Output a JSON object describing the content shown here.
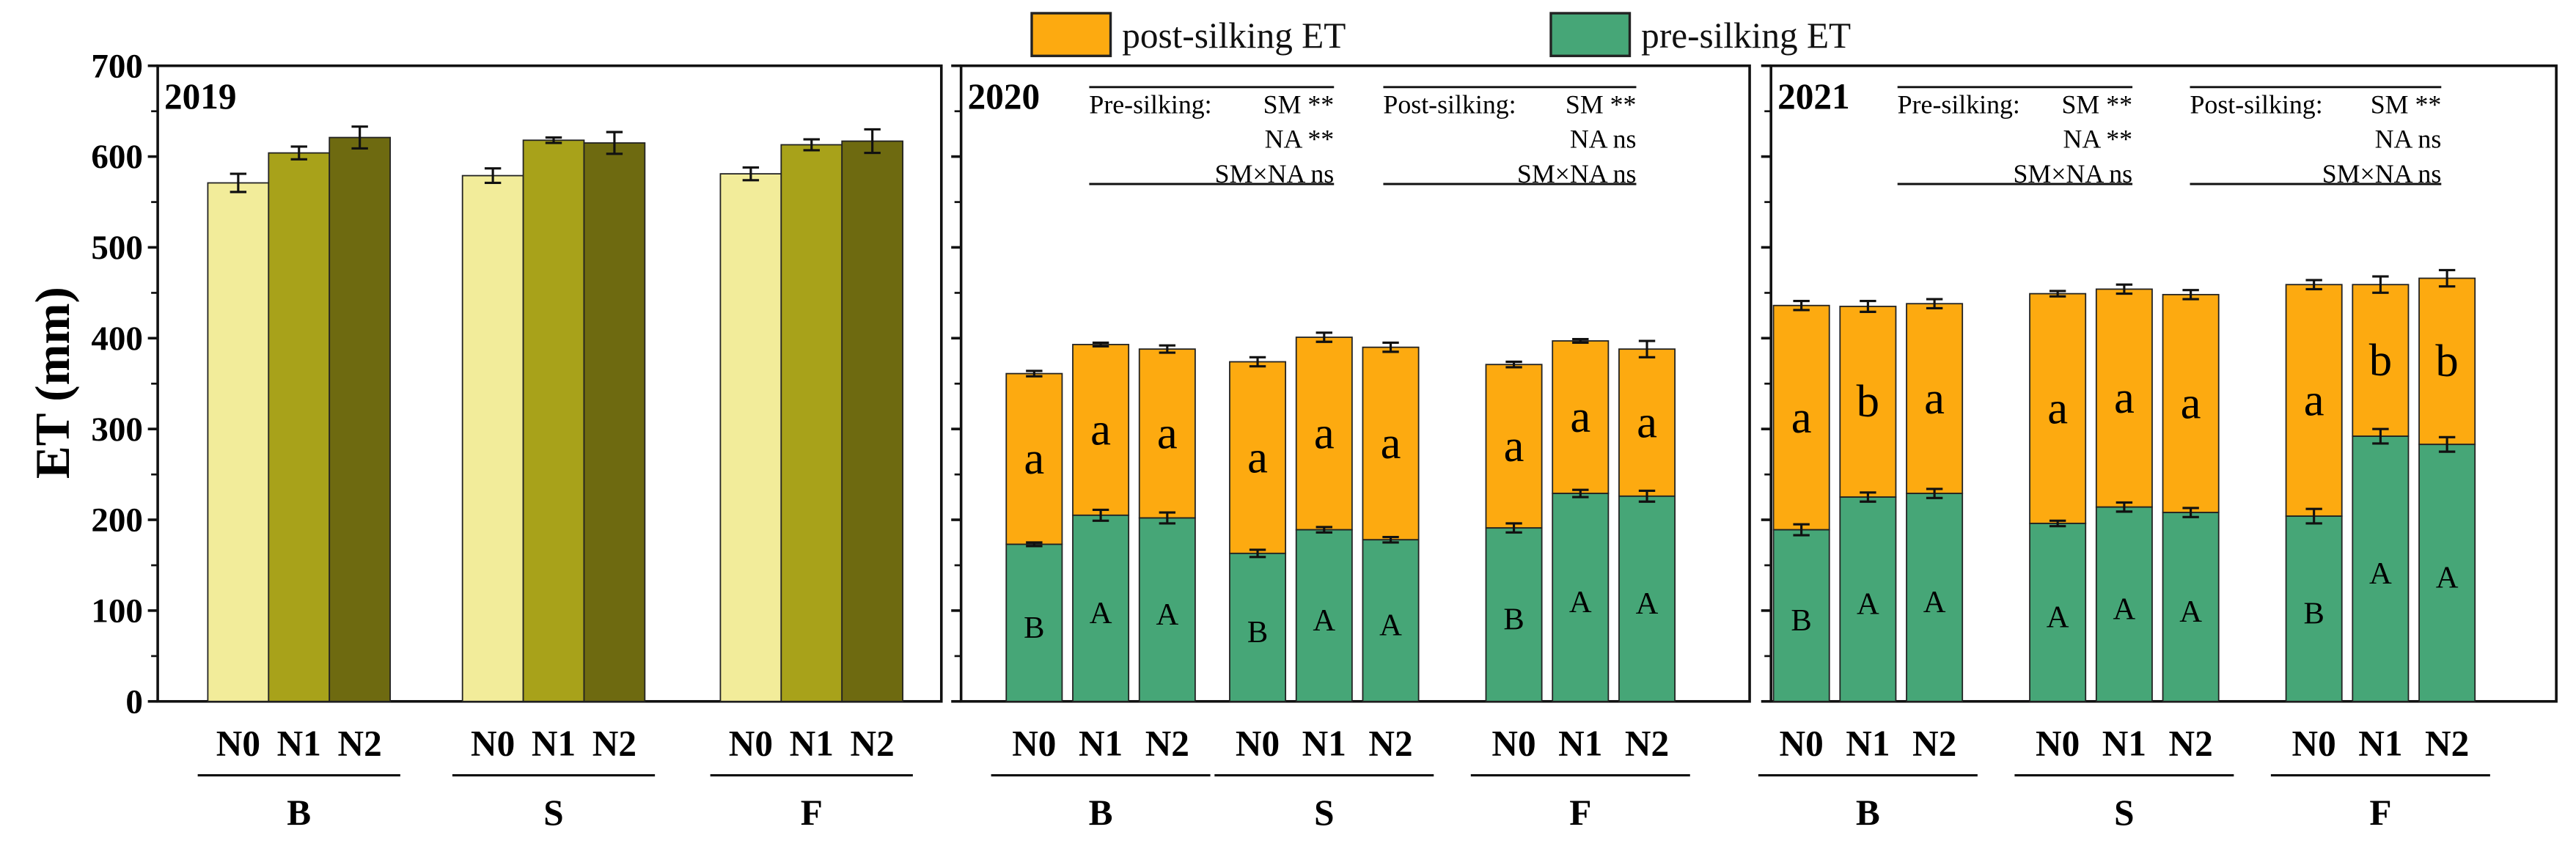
{
  "chart_data": {
    "type": "bar",
    "ylabel": "ET (mm)",
    "ylim": [
      0,
      700
    ],
    "yticks": [
      "0",
      "100",
      "200",
      "300",
      "400",
      "500",
      "600",
      "700"
    ],
    "legend": {
      "placement": "top-center",
      "entries": [
        {
          "label": "post-silking ET",
          "color": "#fdaa10"
        },
        {
          "label": "pre-silking ET",
          "color": "#46a677"
        }
      ]
    },
    "groups": [
      "B",
      "S",
      "F"
    ],
    "levels": [
      "N0",
      "N1",
      "N2"
    ],
    "colors_2019": [
      "#f2ec9a",
      "#a8a21a",
      "#6e6a10"
    ],
    "panels": [
      {
        "year": "2019",
        "type": "bar",
        "values": [
          [
            571,
            604,
            621
          ],
          [
            579,
            618,
            615
          ],
          [
            581,
            613,
            617
          ]
        ],
        "errors": [
          [
            10,
            7,
            12
          ],
          [
            8,
            3,
            12
          ],
          [
            7,
            6,
            13
          ]
        ]
      },
      {
        "year": "2020",
        "type": "stacked",
        "pre": [
          [
            173,
            205,
            202
          ],
          [
            163,
            189,
            178
          ],
          [
            191,
            229,
            226
          ]
        ],
        "pre_err": [
          [
            2,
            6,
            6
          ],
          [
            4,
            3,
            3
          ],
          [
            5,
            4,
            6
          ]
        ],
        "total": [
          [
            361,
            393,
            388
          ],
          [
            374,
            401,
            390
          ],
          [
            371,
            397,
            388
          ]
        ],
        "total_err": [
          [
            3,
            2,
            4
          ],
          [
            5,
            5,
            5
          ],
          [
            3,
            2,
            9
          ]
        ],
        "pre_letters": [
          [
            "B",
            "A",
            "A"
          ],
          [
            "B",
            "A",
            "A"
          ],
          [
            "B",
            "A",
            "A"
          ]
        ],
        "post_letters": [
          [
            "a",
            "a",
            "a"
          ],
          [
            "a",
            "a",
            "a"
          ],
          [
            "a",
            "a",
            "a"
          ]
        ],
        "stats": {
          "pre": {
            "title": "Pre-silking:",
            "lines": [
              "SM **",
              "NA **",
              "SM×NA ns"
            ]
          },
          "post": {
            "title": "Post-silking:",
            "lines": [
              "SM **",
              "NA ns",
              "SM×NA ns"
            ]
          }
        }
      },
      {
        "year": "2021",
        "type": "stacked",
        "pre": [
          [
            189,
            225,
            229
          ],
          [
            196,
            214,
            208
          ],
          [
            204,
            292,
            283
          ]
        ],
        "pre_err": [
          [
            6,
            5,
            5
          ],
          [
            3,
            5,
            5
          ],
          [
            8,
            8,
            8
          ]
        ],
        "total": [
          [
            436,
            435,
            438
          ],
          [
            449,
            454,
            448
          ],
          [
            459,
            459,
            466
          ]
        ],
        "total_err": [
          [
            5,
            6,
            5
          ],
          [
            3,
            5,
            5
          ],
          [
            5,
            9,
            9
          ]
        ],
        "pre_letters": [
          [
            "B",
            "A",
            "A"
          ],
          [
            "A",
            "A",
            "A"
          ],
          [
            "B",
            "A",
            "A"
          ]
        ],
        "post_letters": [
          [
            "a",
            "b",
            "a"
          ],
          [
            "a",
            "a",
            "a"
          ],
          [
            "a",
            "b",
            "b"
          ]
        ],
        "stats": {
          "pre": {
            "title": "Pre-silking:",
            "lines": [
              "SM **",
              "NA **",
              "SM×NA ns"
            ]
          },
          "post": {
            "title": "Post-silking:",
            "lines": [
              "SM **",
              "NA ns",
              "SM×NA ns"
            ]
          }
        }
      }
    ]
  }
}
